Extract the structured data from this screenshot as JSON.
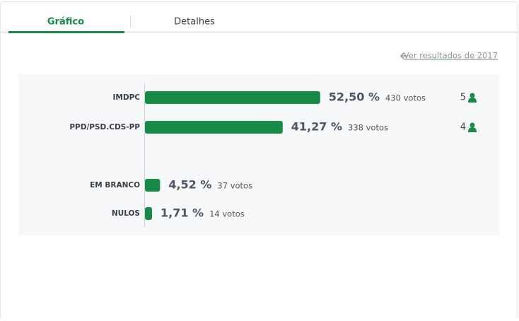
{
  "tabs": [
    "Gráfico",
    "Detalhes"
  ],
  "link": "Ver resultados de 2017",
  "chart_data": {
    "type": "bar",
    "categories": [
      "IMDPC",
      "PPD/PSD.CDS-PP",
      "EM BRANCO",
      "NULOS"
    ],
    "values": [
      52.5,
      41.27,
      4.52,
      1.71
    ],
    "value_labels": [
      "52,50 %",
      "41,27 %",
      "4,52 %",
      "1,71 %"
    ],
    "vote_labels": [
      "430 votos",
      "338 votos",
      "37 votos",
      "14 votos"
    ],
    "seats": [
      5,
      4
    ],
    "color": "#168a47"
  }
}
